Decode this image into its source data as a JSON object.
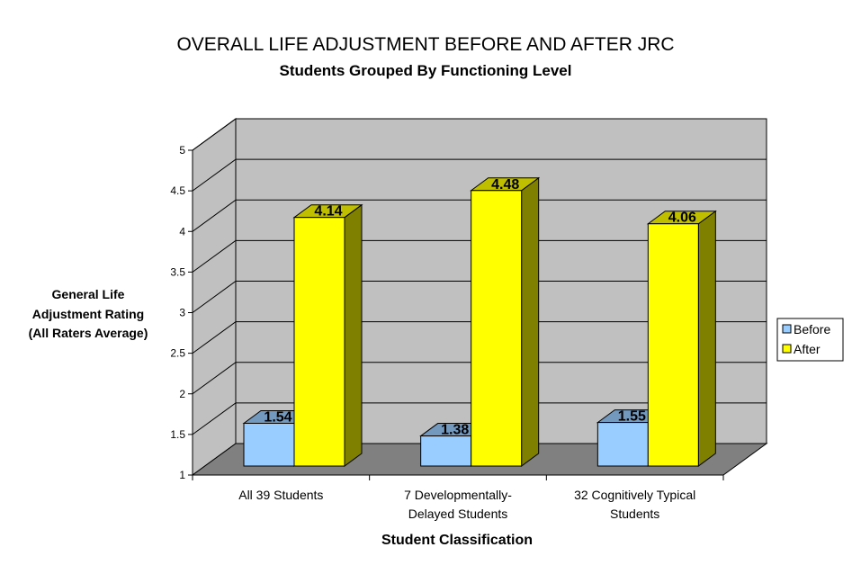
{
  "chart_data": {
    "type": "bar",
    "title": "OVERALL LIFE ADJUSTMENT BEFORE AND AFTER JRC",
    "subtitle": "Students Grouped By Functioning Level",
    "xlabel": "Student Classification",
    "ylabel_lines": [
      "General Life",
      "Adjustment Rating",
      "(All Raters Average)"
    ],
    "ylim": [
      1,
      5
    ],
    "yticks": [
      1,
      1.5,
      2,
      2.5,
      3,
      3.5,
      4,
      4.5,
      5
    ],
    "ytick_labels": [
      "1",
      "1.5",
      "2",
      "2.5",
      "3",
      "3.5",
      "4",
      "4.5",
      "5"
    ],
    "grid": true,
    "legend_position": "right",
    "categories": [
      [
        "All 39 Students"
      ],
      [
        "7 Developmentally-",
        "Delayed Students"
      ],
      [
        "32 Cognitively Typical",
        "Students"
      ]
    ],
    "series": [
      {
        "name": "Before",
        "values": [
          1.54,
          1.38,
          1.55
        ],
        "labels": [
          "1.54",
          "1.38",
          "1.55"
        ],
        "color": "#99ccff"
      },
      {
        "name": "After",
        "values": [
          4.14,
          4.48,
          4.06
        ],
        "labels": [
          "4.14",
          "4.48",
          "4.06"
        ],
        "color": "#ffff00"
      }
    ],
    "colors": {
      "back_wall": "#c0c0c0",
      "floor": "#808080",
      "gridline": "#000000"
    }
  }
}
